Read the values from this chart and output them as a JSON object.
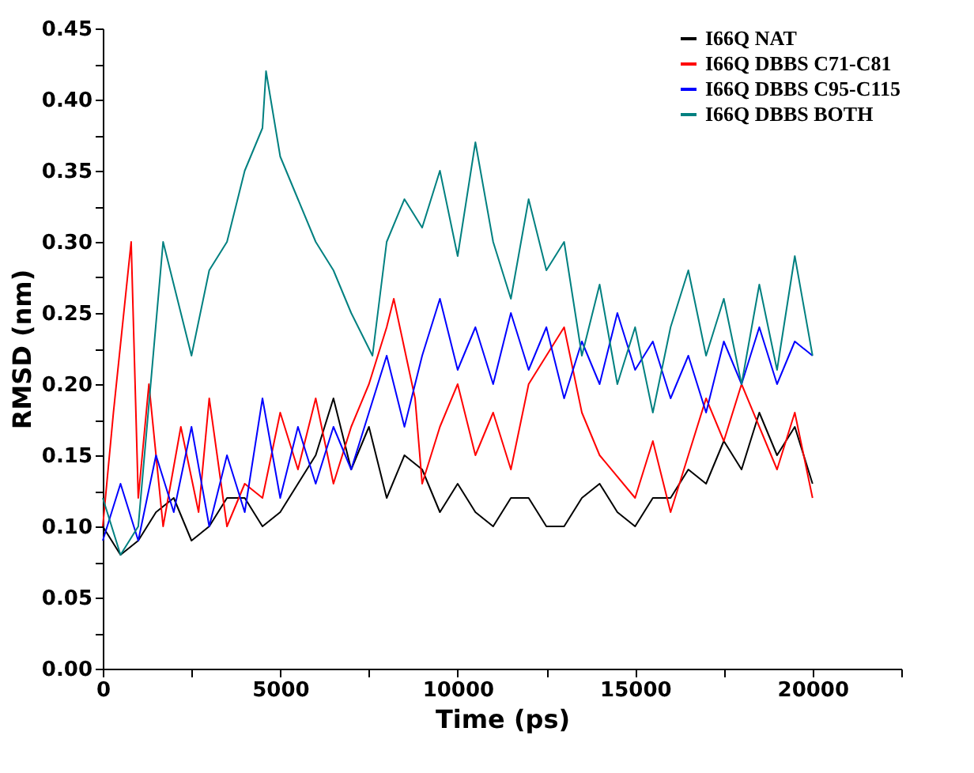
{
  "chart_data": {
    "type": "line",
    "xlabel": "Time (ps)",
    "ylabel": "RMSD (nm)",
    "xlim": [
      0,
      22500
    ],
    "ylim": [
      0,
      0.45
    ],
    "xticks": [
      0,
      {
        "value": 2500,
        "label": null
      },
      5000,
      {
        "value": 7500,
        "label": null
      },
      10000,
      {
        "value": 12500,
        "label": null
      },
      15000,
      {
        "value": 17500,
        "label": null
      },
      20000,
      {
        "value": 22500,
        "label": null
      }
    ],
    "yticks": [
      {
        "value": 0,
        "label": "0.00"
      },
      {
        "value": 0.025,
        "label": null
      },
      {
        "value": 0.05,
        "label": "0.05"
      },
      {
        "value": 0.075,
        "label": null
      },
      {
        "value": 0.1,
        "label": "0.10"
      },
      {
        "value": 0.125,
        "label": null
      },
      {
        "value": 0.15,
        "label": "0.15"
      },
      {
        "value": 0.175,
        "label": null
      },
      {
        "value": 0.2,
        "label": "0.20"
      },
      {
        "value": 0.225,
        "label": null
      },
      {
        "value": 0.25,
        "label": "0.25"
      },
      {
        "value": 0.275,
        "label": null
      },
      {
        "value": 0.3,
        "label": "0.30"
      },
      {
        "value": 0.325,
        "label": null
      },
      {
        "value": 0.35,
        "label": "0.35"
      },
      {
        "value": 0.375,
        "label": null
      },
      {
        "value": 0.4,
        "label": "0.40"
      },
      {
        "value": 0.425,
        "label": null
      },
      {
        "value": 0.45,
        "label": "0.45"
      }
    ],
    "grid": false,
    "legend": "top right",
    "marker": "none",
    "line_style": "solid",
    "series": [
      {
        "name": "I66Q NAT",
        "color": "#000000",
        "x": [
          0,
          500,
          1000,
          1500,
          2000,
          2500,
          3000,
          3500,
          4000,
          4500,
          5000,
          5500,
          6000,
          6500,
          7000,
          7500,
          8000,
          8500,
          9000,
          9500,
          10000,
          10500,
          11000,
          11500,
          12000,
          12500,
          13000,
          13500,
          14000,
          14500,
          15000,
          15500,
          16000,
          16500,
          17000,
          17500,
          18000,
          18500,
          19000,
          19500,
          20000
        ],
        "values": [
          0.1,
          0.08,
          0.09,
          0.11,
          0.12,
          0.09,
          0.1,
          0.12,
          0.12,
          0.1,
          0.11,
          0.13,
          0.15,
          0.19,
          0.14,
          0.17,
          0.12,
          0.15,
          0.14,
          0.11,
          0.13,
          0.11,
          0.1,
          0.12,
          0.12,
          0.1,
          0.1,
          0.12,
          0.13,
          0.11,
          0.1,
          0.12,
          0.12,
          0.14,
          0.13,
          0.16,
          0.14,
          0.18,
          0.15,
          0.17,
          0.13
        ]
      },
      {
        "name": "I66Q DBBS C71-C81",
        "color": "#ff0000",
        "x": [
          0,
          300,
          800,
          1000,
          1300,
          1700,
          2200,
          2700,
          3000,
          3500,
          4000,
          4500,
          5000,
          5500,
          6000,
          6500,
          7000,
          7500,
          8000,
          8200,
          8800,
          9000,
          9500,
          10000,
          10500,
          11000,
          11500,
          12000,
          13000,
          13500,
          14000,
          15000,
          15500,
          16000,
          16500,
          17000,
          17500,
          18000,
          19000,
          19500,
          20000
        ],
        "values": [
          0.1,
          0.18,
          0.3,
          0.12,
          0.2,
          0.1,
          0.17,
          0.11,
          0.19,
          0.1,
          0.13,
          0.12,
          0.18,
          0.14,
          0.19,
          0.13,
          0.17,
          0.2,
          0.24,
          0.26,
          0.19,
          0.13,
          0.17,
          0.2,
          0.15,
          0.18,
          0.14,
          0.2,
          0.24,
          0.18,
          0.15,
          0.12,
          0.16,
          0.11,
          0.15,
          0.19,
          0.16,
          0.2,
          0.14,
          0.18,
          0.12
        ]
      },
      {
        "name": "I66Q DBBS C95-C115",
        "color": "#0000ff",
        "x": [
          0,
          500,
          1000,
          1500,
          2000,
          2500,
          3000,
          3500,
          4000,
          4500,
          5000,
          5500,
          6000,
          6500,
          7000,
          7500,
          8000,
          8500,
          9000,
          9500,
          10000,
          10500,
          11000,
          11500,
          12000,
          12500,
          13000,
          13500,
          14000,
          14500,
          15000,
          15500,
          16000,
          16500,
          17000,
          17500,
          18000,
          18500,
          19000,
          19500,
          20000
        ],
        "values": [
          0.09,
          0.13,
          0.09,
          0.15,
          0.11,
          0.17,
          0.1,
          0.15,
          0.11,
          0.19,
          0.12,
          0.17,
          0.13,
          0.17,
          0.14,
          0.18,
          0.22,
          0.17,
          0.22,
          0.26,
          0.21,
          0.24,
          0.2,
          0.25,
          0.21,
          0.24,
          0.19,
          0.23,
          0.2,
          0.25,
          0.21,
          0.23,
          0.19,
          0.22,
          0.18,
          0.23,
          0.2,
          0.24,
          0.2,
          0.23,
          0.22
        ]
      },
      {
        "name": "I66Q DBBS BOTH",
        "color": "#008080",
        "x": [
          0,
          500,
          1000,
          1700,
          2500,
          3000,
          3500,
          4000,
          4500,
          4600,
          5000,
          5500,
          6000,
          6500,
          7000,
          7600,
          8000,
          8500,
          9000,
          9500,
          10000,
          10500,
          11000,
          11500,
          12000,
          12500,
          13000,
          13500,
          14000,
          14500,
          15000,
          15500,
          16000,
          16500,
          17000,
          17500,
          18000,
          18500,
          19000,
          19500,
          20000
        ],
        "values": [
          0.12,
          0.08,
          0.1,
          0.3,
          0.22,
          0.28,
          0.3,
          0.35,
          0.38,
          0.42,
          0.36,
          0.33,
          0.3,
          0.28,
          0.25,
          0.22,
          0.3,
          0.33,
          0.31,
          0.35,
          0.29,
          0.37,
          0.3,
          0.26,
          0.33,
          0.28,
          0.3,
          0.22,
          0.27,
          0.2,
          0.24,
          0.18,
          0.24,
          0.28,
          0.22,
          0.26,
          0.2,
          0.27,
          0.21,
          0.29,
          0.22
        ]
      }
    ]
  }
}
